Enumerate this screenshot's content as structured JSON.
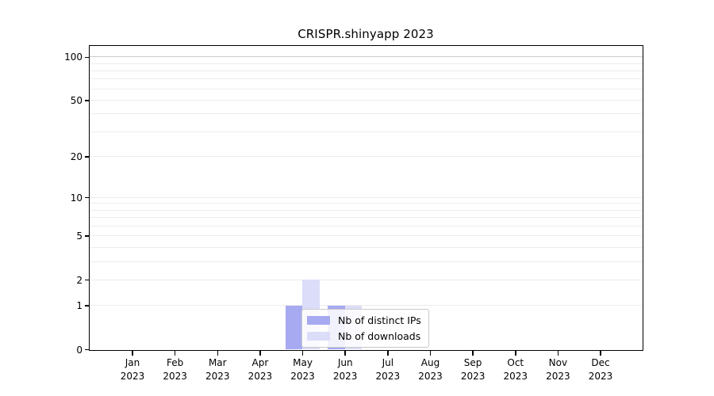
{
  "chart_data": {
    "type": "bar",
    "title": "CRISPR.shinyapp 2023",
    "categories": [
      "Jan",
      "Feb",
      "Mar",
      "Apr",
      "May",
      "Jun",
      "Jul",
      "Aug",
      "Sep",
      "Oct",
      "Nov",
      "Dec"
    ],
    "category_year": "2023",
    "series": [
      {
        "name": "Nb of distinct IPs",
        "color": "#a8aaf1",
        "values": [
          0,
          0,
          0,
          0,
          1,
          1,
          0,
          0,
          0,
          0,
          0,
          0
        ]
      },
      {
        "name": "Nb of downloads",
        "color": "#dcddf8",
        "values": [
          0,
          0,
          0,
          0,
          2,
          1,
          0,
          0,
          0,
          0,
          0,
          0
        ]
      }
    ],
    "yscale": "log1p",
    "ylim": [
      0,
      119
    ],
    "y_tick_values": [
      0,
      1,
      2,
      5,
      10,
      20,
      50,
      100
    ],
    "y_tick_labels": [
      "0",
      "1",
      "2",
      "5",
      "10",
      "20",
      "50",
      "100"
    ],
    "y_minor_gridline_values": [
      3,
      4,
      6,
      7,
      8,
      9,
      30,
      40,
      60,
      70,
      80,
      90
    ],
    "grid": true,
    "legend_position": "lower center",
    "colors": {
      "grid_minor": "#ececec",
      "grid_top": "#cccccc",
      "axis": "#000000",
      "background": "#ffffff"
    }
  }
}
